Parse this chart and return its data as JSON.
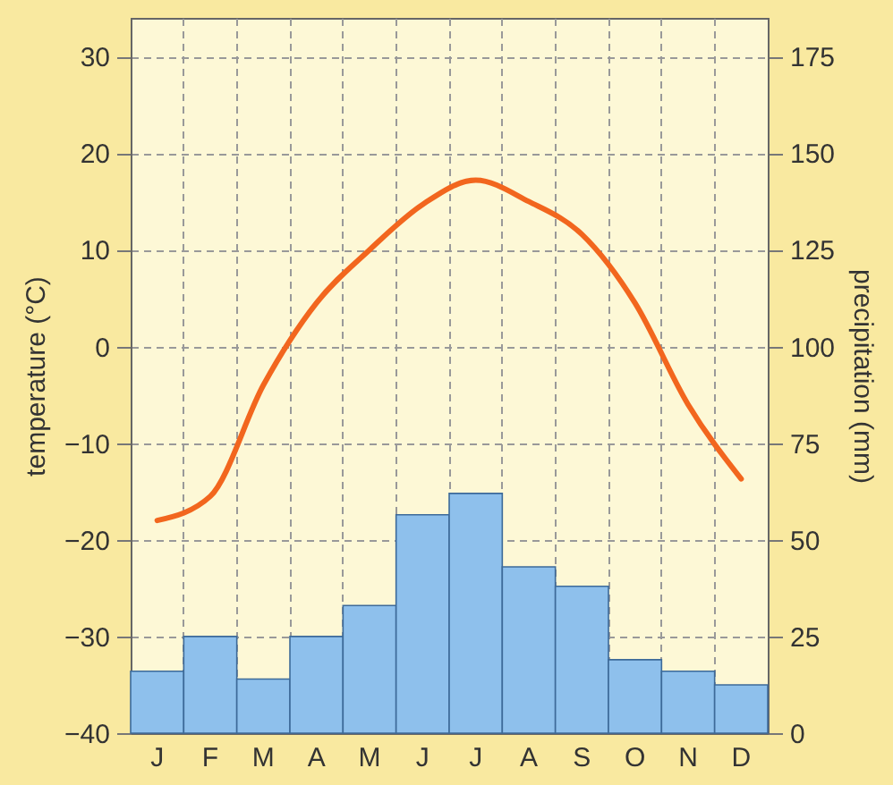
{
  "chart_data": {
    "type": "bar",
    "categories": [
      "J",
      "F",
      "M",
      "A",
      "M",
      "J",
      "J",
      "A",
      "S",
      "O",
      "N",
      "D"
    ],
    "series": [
      {
        "axis": "y2",
        "color": "#8ec0ec",
        "values": [
          16,
          25,
          14,
          25,
          33,
          56.5,
          62,
          43,
          38,
          19,
          16,
          12.5
        ]
      },
      {
        "type": "line",
        "axis": "y",
        "color": "#f2661e",
        "values": [
          -18,
          -15.5,
          -4,
          4.5,
          10,
          14.7,
          17.2,
          15,
          11.6,
          4.5,
          -6,
          -13.7
        ]
      }
    ],
    "ylabel": "temperature (°C)",
    "y2label": "precipitation (mm)",
    "ylim": [
      -40,
      34
    ],
    "yticks": [
      -40,
      -30,
      -20,
      -10,
      0,
      10,
      20,
      30
    ],
    "y2lim": [
      0,
      185
    ],
    "y2ticks": [
      0,
      25,
      50,
      75,
      100,
      125,
      150,
      175
    ],
    "grid": true,
    "line_style": "solid"
  }
}
